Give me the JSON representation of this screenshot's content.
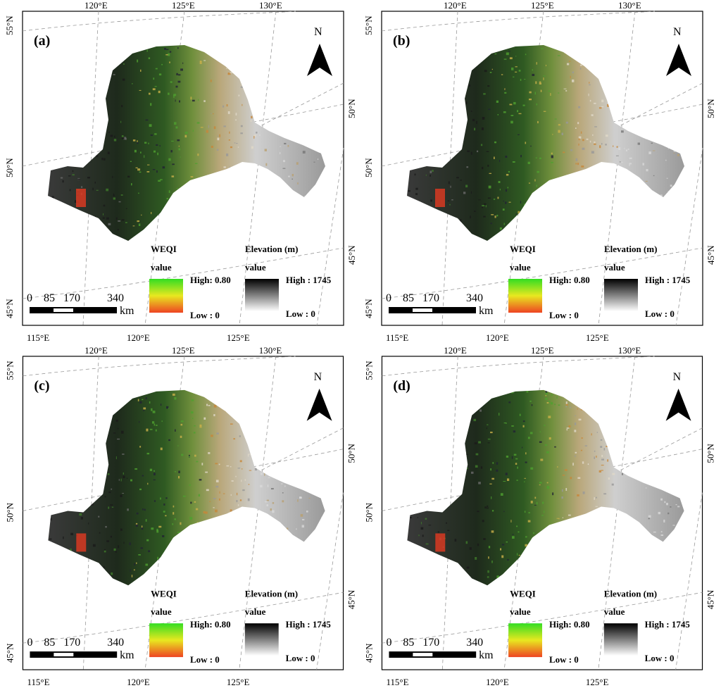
{
  "panels": [
    {
      "id": "a",
      "label": "(a)"
    },
    {
      "id": "b",
      "label": "(b)"
    },
    {
      "id": "c",
      "label": "(c)"
    },
    {
      "id": "d",
      "label": "(d)"
    }
  ],
  "north_label": "N",
  "top_lon_labels": [
    "120°E",
    "125°E",
    "130°E"
  ],
  "bottom_lon_labels": [
    "115°E",
    "120°E",
    "125°E"
  ],
  "left_lat_labels": [
    "55°N",
    "50°N",
    "45°N"
  ],
  "right_lat_labels": [
    "50°N",
    "45°N"
  ],
  "weqi_legend": {
    "title": "WEQI",
    "subtitle": "value",
    "high": "High: 0.80",
    "low": "Low : 0",
    "colors": [
      "#33dd22",
      "#e8e820",
      "#ee4422"
    ]
  },
  "elevation_legend": {
    "title": "Elevation (m)",
    "subtitle": "value",
    "high": "High : 1745",
    "low": "Low : 0",
    "colors": [
      "#000000",
      "#ffffff"
    ]
  },
  "scale_bar": {
    "ticks": [
      "0",
      "85",
      "170",
      "340"
    ],
    "unit": "km"
  }
}
